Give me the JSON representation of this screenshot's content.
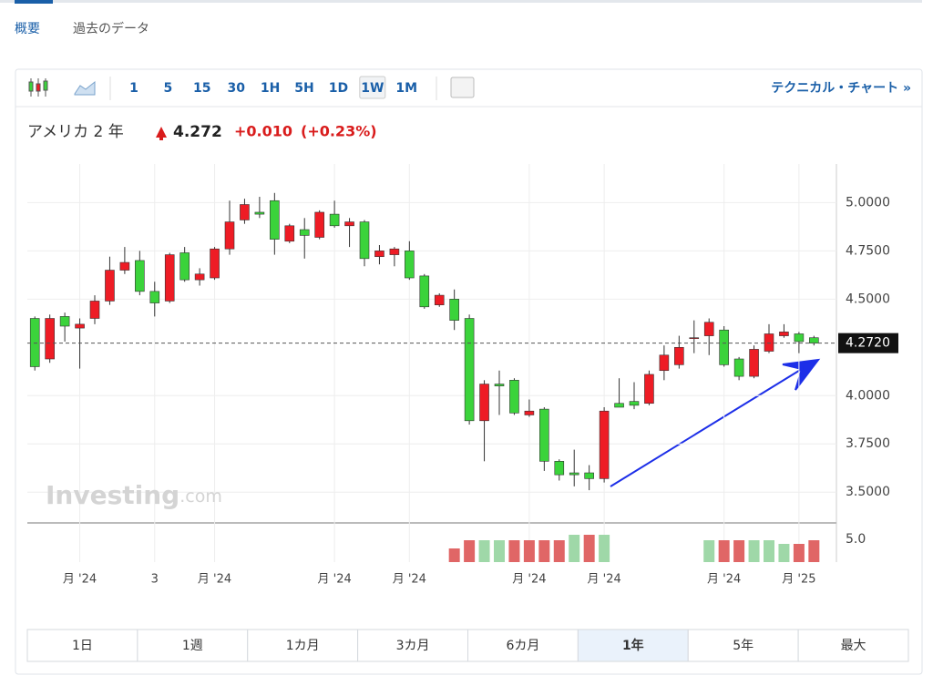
{
  "tabs": [
    "概要",
    "過去のデータ"
  ],
  "active_tab": 0,
  "toolbar": {
    "intervals": [
      "1",
      "5",
      "15",
      "30",
      "1H",
      "5H",
      "1D",
      "1W",
      "1M"
    ],
    "active_interval": 7,
    "technical_link": "テクニカル・チャート »"
  },
  "header": {
    "title": "アメリカ 2 年",
    "price": "4.272",
    "change": "+0.010",
    "change_pct": "(+0.23%)"
  },
  "chart_data": {
    "type": "candlestick",
    "watermark": [
      "Investing",
      ".com"
    ],
    "categories": [
      null,
      null,
      null,
      "月 '24",
      null,
      null,
      null,
      null,
      "3",
      null,
      null,
      null,
      "月 '24",
      null,
      null,
      null,
      null,
      null,
      null,
      null,
      "月 '24",
      null,
      null,
      null,
      null,
      "月 '24",
      null,
      null,
      null,
      null,
      null,
      null,
      null,
      "月 '24",
      null,
      null,
      null,
      null,
      "月 '24",
      null,
      null,
      null,
      null,
      null,
      null,
      null,
      "月 '24",
      null,
      null,
      null,
      null,
      "月 '25",
      null
    ],
    "open": [
      4.4,
      4.19,
      4.41,
      4.35,
      4.4,
      4.49,
      4.65,
      4.7,
      4.54,
      4.49,
      4.74,
      4.6,
      4.61,
      4.76,
      4.91,
      4.95,
      5.01,
      4.8,
      4.86,
      4.82,
      4.94,
      4.88,
      4.9,
      4.72,
      4.73,
      4.75,
      4.62,
      4.47,
      4.5,
      4.4,
      3.87,
      4.06,
      4.08,
      3.9,
      3.93,
      3.66,
      3.6,
      3.6,
      3.57,
      3.96,
      3.97,
      3.96,
      4.13,
      4.16,
      4.3,
      4.31,
      4.34,
      4.19,
      4.1,
      4.23,
      4.31,
      4.32,
      4.3
    ],
    "high": [
      4.41,
      4.42,
      4.43,
      4.4,
      4.52,
      4.72,
      4.77,
      4.75,
      4.59,
      4.74,
      4.77,
      4.66,
      4.77,
      5.01,
      5.02,
      5.03,
      5.05,
      4.89,
      4.92,
      4.96,
      5.01,
      4.92,
      4.91,
      4.78,
      4.77,
      4.8,
      4.63,
      4.53,
      4.55,
      4.42,
      4.08,
      4.13,
      4.09,
      3.98,
      3.94,
      3.67,
      3.72,
      3.64,
      3.94,
      4.09,
      4.07,
      4.13,
      4.26,
      4.31,
      4.39,
      4.4,
      4.36,
      4.2,
      4.26,
      4.37,
      4.37,
      4.33,
      4.31
    ],
    "low": [
      4.13,
      4.17,
      4.28,
      4.14,
      4.37,
      4.47,
      4.63,
      4.52,
      4.41,
      4.48,
      4.59,
      4.57,
      4.6,
      4.73,
      4.89,
      4.92,
      4.73,
      4.79,
      4.71,
      4.81,
      4.87,
      4.77,
      4.67,
      4.68,
      4.67,
      4.6,
      4.45,
      4.46,
      4.34,
      3.85,
      3.66,
      3.9,
      3.9,
      3.89,
      3.61,
      3.56,
      3.53,
      3.51,
      3.55,
      3.94,
      3.93,
      3.95,
      4.08,
      4.14,
      4.22,
      4.21,
      4.15,
      4.08,
      4.09,
      4.22,
      4.3,
      4.22,
      4.26
    ],
    "close": [
      4.15,
      4.4,
      4.36,
      4.37,
      4.49,
      4.65,
      4.69,
      4.54,
      4.48,
      4.73,
      4.6,
      4.63,
      4.76,
      4.9,
      4.99,
      4.94,
      4.81,
      4.88,
      4.83,
      4.95,
      4.88,
      4.9,
      4.71,
      4.75,
      4.76,
      4.61,
      4.46,
      4.52,
      4.39,
      3.87,
      4.06,
      4.05,
      3.91,
      3.92,
      3.66,
      3.59,
      3.59,
      3.57,
      3.92,
      3.94,
      3.95,
      4.11,
      4.21,
      4.25,
      4.3,
      4.38,
      4.16,
      4.1,
      4.24,
      4.32,
      4.33,
      4.28,
      4.272
    ],
    "up_color": "#ee1c25",
    "down_color": "#3bd33b",
    "ylim": [
      3.35,
      5.2
    ],
    "yticks": [
      {
        "value": 3.5,
        "label": "3.5000"
      },
      {
        "value": 3.75,
        "label": "3.7500"
      },
      {
        "value": 4,
        "label": "4.0000"
      },
      {
        "value": 4.5,
        "label": "4.5000"
      },
      {
        "value": 4.75,
        "label": "4.7500"
      },
      {
        "value": 5,
        "label": "5.0000"
      }
    ],
    "grid": true,
    "last_price": {
      "value": 4.272,
      "label": "4.2720"
    },
    "volume": {
      "values": [
        null,
        null,
        null,
        null,
        null,
        null,
        null,
        null,
        null,
        null,
        null,
        null,
        null,
        null,
        null,
        null,
        null,
        null,
        null,
        null,
        null,
        null,
        null,
        null,
        null,
        null,
        null,
        null,
        3.0,
        4.8,
        4.8,
        4.8,
        4.8,
        4.8,
        4.8,
        4.8,
        6.0,
        6.0,
        6.0,
        null,
        null,
        null,
        null,
        null,
        null,
        4.8,
        4.8,
        4.8,
        4.8,
        4.8,
        4.0,
        4.0,
        4.8
      ],
      "colors": [
        null,
        null,
        null,
        null,
        null,
        null,
        null,
        null,
        null,
        null,
        null,
        null,
        null,
        null,
        null,
        null,
        null,
        null,
        null,
        null,
        null,
        null,
        null,
        null,
        null,
        null,
        null,
        null,
        "#e06666",
        "#e06666",
        "#9fd8a8",
        "#9fd8a8",
        "#e06666",
        "#e06666",
        "#e06666",
        "#e06666",
        "#9fd8a8",
        "#e06666",
        "#9fd8a8",
        null,
        null,
        null,
        null,
        null,
        null,
        "#9fd8a8",
        "#e06666",
        "#e06666",
        "#9fd8a8",
        "#9fd8a8",
        "#9fd8a8",
        "#e06666",
        "#e06666"
      ],
      "ylim": [
        0,
        8.4
      ],
      "yticks": [
        {
          "value": 5,
          "label": "5.0"
        }
      ]
    }
  },
  "ranges": [
    "1日",
    "1週",
    "1カ月",
    "3カ月",
    "6カ月",
    "1年",
    "5年",
    "最大"
  ],
  "active_range": 5
}
